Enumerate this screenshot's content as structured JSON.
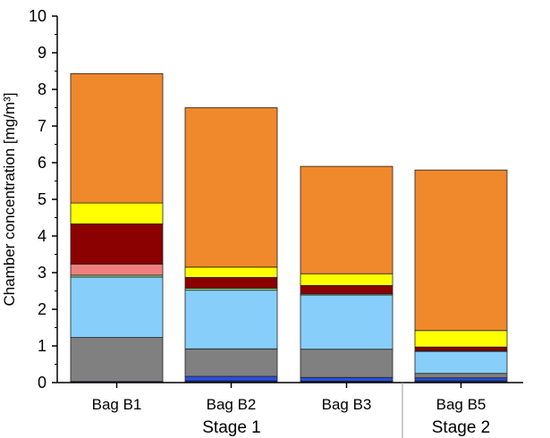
{
  "chart_data": {
    "type": "bar",
    "stacked": true,
    "ylabel": "Chamber concentration [mg/m³]",
    "xlabel": "",
    "ylim": [
      0,
      10
    ],
    "yticks": [
      "0",
      "1",
      "2",
      "3",
      "4",
      "5",
      "6",
      "7",
      "8",
      "9",
      "10"
    ],
    "categories": [
      "Bag B1",
      "Bag B2",
      "Bag B3",
      "Bag B5"
    ],
    "groups": [
      {
        "label": "Stage 1",
        "categories": [
          "Bag B1",
          "Bag B2",
          "Bag B3"
        ]
      },
      {
        "label": "Stage 2",
        "categories": [
          "Bag B5"
        ]
      }
    ],
    "series": [
      {
        "color": "#1a2a8a",
        "values": [
          0.03,
          0.05,
          0.04,
          0.05
        ]
      },
      {
        "color": "#2850e0",
        "values": [
          0.0,
          0.12,
          0.1,
          0.08
        ]
      },
      {
        "color": "#808080",
        "values": [
          1.2,
          0.75,
          0.77,
          0.12
        ]
      },
      {
        "color": "#87cefa",
        "values": [
          1.65,
          1.6,
          1.48,
          0.6
        ]
      },
      {
        "color": "#90ee90",
        "values": [
          0.05,
          0.05,
          0.03,
          0.02
        ]
      },
      {
        "color": "#f08080",
        "values": [
          0.3,
          0.0,
          0.0,
          0.0
        ]
      },
      {
        "color": "#8b0000",
        "values": [
          1.1,
          0.3,
          0.23,
          0.1
        ]
      },
      {
        "color": "#ffff00",
        "values": [
          0.57,
          0.28,
          0.32,
          0.45
        ]
      },
      {
        "color": "#f0882c",
        "values": [
          3.53,
          4.35,
          2.93,
          4.38
        ]
      }
    ],
    "totals": [
      8.43,
      7.5,
      5.9,
      5.8
    ],
    "grid": false,
    "legend": "none"
  }
}
